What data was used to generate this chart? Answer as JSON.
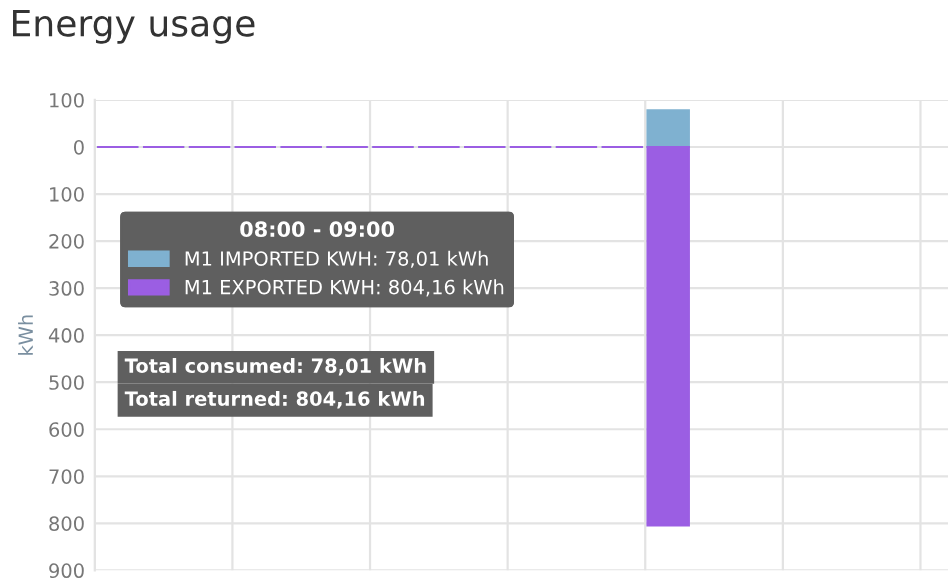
{
  "chart_data": {
    "type": "bar",
    "title": "Energy usage",
    "ylabel": "kWh",
    "categories": [
      null,
      null,
      null,
      null,
      null,
      null,
      null,
      null,
      null,
      null,
      null,
      null,
      null,
      null,
      null,
      null,
      null,
      null
    ],
    "series": [
      {
        "name": "M1 IMPORTED KWH: 78,01 kWh",
        "color": "#7fb1d0",
        "values": [
          0,
          0,
          0,
          0,
          0,
          0,
          0,
          0,
          0,
          0,
          0,
          0,
          78.01,
          null,
          null,
          null,
          null,
          null
        ]
      },
      {
        "name": "M1 EXPORTED KWH: 804,16 kWh",
        "color": "#9b5ee3",
        "values": [
          0,
          0,
          0,
          0,
          0,
          0,
          0,
          0,
          0,
          0,
          0,
          0,
          -804.16,
          null,
          null,
          null,
          null,
          null
        ]
      }
    ],
    "ylim": [
      -900,
      100
    ],
    "yticks": [
      100,
      0,
      {
        "value": -100,
        "label": "100"
      },
      {
        "value": -200,
        "label": "200"
      },
      {
        "value": -300,
        "label": "300"
      },
      {
        "value": -400,
        "label": "400"
      },
      {
        "value": -500,
        "label": "500"
      },
      {
        "value": -600,
        "label": "600"
      },
      {
        "value": -700,
        "label": "700"
      },
      {
        "value": -800,
        "label": "800"
      },
      {
        "value": -900,
        "label": "900"
      }
    ],
    "tick_labels": "y",
    "grid": true,
    "legend": "left",
    "legend_title": "08:00 - 09:00",
    "annotations": [
      "Total consumed: 78,01 kWh",
      "Total returned: 804,16 kWh"
    ]
  }
}
